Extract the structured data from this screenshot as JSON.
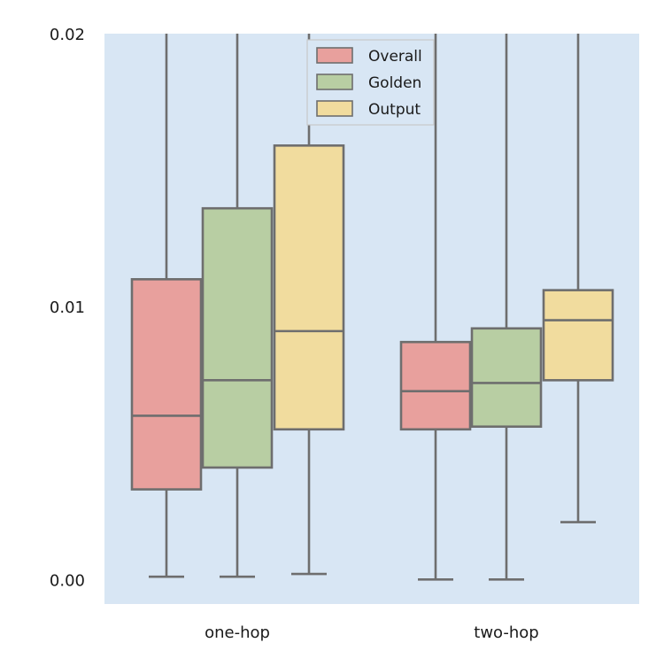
{
  "chart_data": {
    "type": "boxplot",
    "categories": [
      "one-hop",
      "two-hop"
    ],
    "ylim": [
      -0.0009,
      0.02
    ],
    "yticks": [
      0.0,
      0.01,
      0.02
    ],
    "ytick_labels": [
      "0.00",
      "0.01",
      "0.02"
    ],
    "grid": false,
    "legend_position": "top-center",
    "colors": {
      "background": "#d8e6f4",
      "line": "#6e6e6e",
      "legend_border": "#c8c8c8"
    },
    "series": [
      {
        "name": "Overall",
        "color": "#e8a09d",
        "boxes": [
          {
            "whisker_low": 0.0001,
            "q1": 0.0033,
            "median": 0.006,
            "q3": 0.011,
            "whisker_high": 0.02
          },
          {
            "whisker_low": 0.0,
            "q1": 0.0055,
            "median": 0.0069,
            "q3": 0.0087,
            "whisker_high": 0.02
          }
        ]
      },
      {
        "name": "Golden",
        "color": "#b8cea3",
        "boxes": [
          {
            "whisker_low": 0.0001,
            "q1": 0.0041,
            "median": 0.0073,
            "q3": 0.0136,
            "whisker_high": 0.02
          },
          {
            "whisker_low": 0.0,
            "q1": 0.0056,
            "median": 0.0072,
            "q3": 0.0092,
            "whisker_high": 0.02
          }
        ]
      },
      {
        "name": "Output",
        "color": "#f1dc9e",
        "boxes": [
          {
            "whisker_low": 0.0002,
            "q1": 0.0055,
            "median": 0.0091,
            "q3": 0.0159,
            "whisker_high": 0.02
          },
          {
            "whisker_low": 0.0021,
            "q1": 0.0073,
            "median": 0.0095,
            "q3": 0.0106,
            "whisker_high": 0.02
          }
        ]
      }
    ]
  }
}
